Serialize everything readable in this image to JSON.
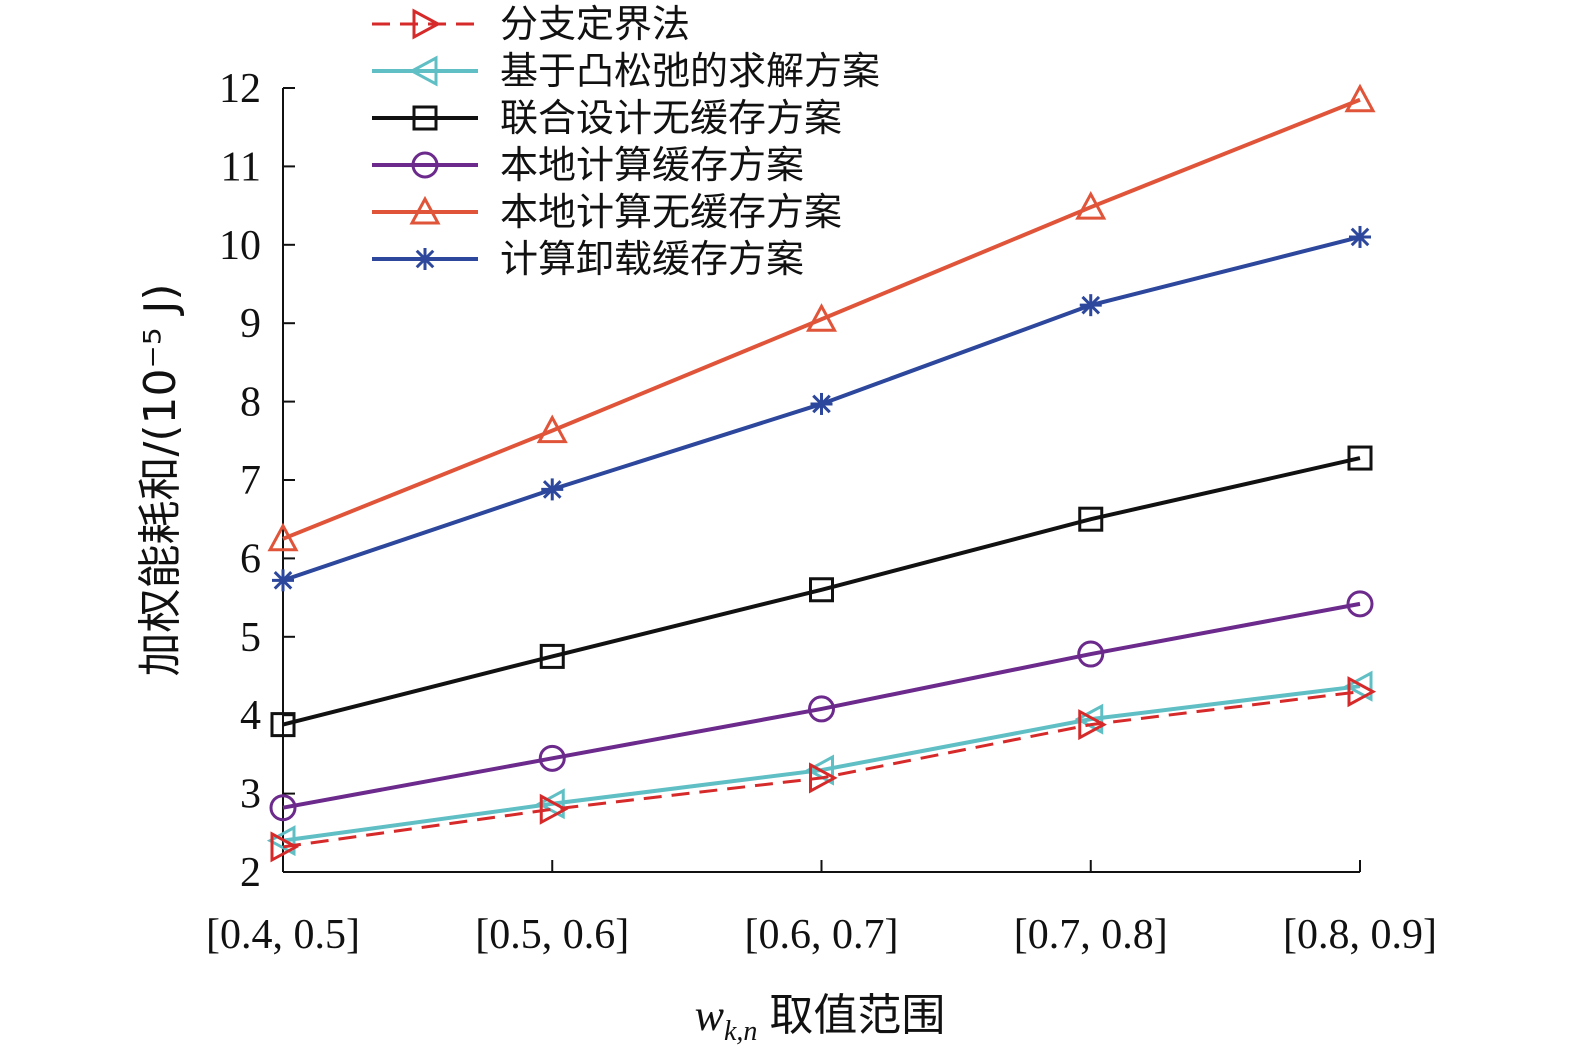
{
  "chart_data": {
    "type": "line",
    "title": "",
    "xlabel": {
      "var": "w",
      "sub": "k,n",
      "text": "取值范围"
    },
    "ylabel": "加权能耗和/(10⁻⁵ J)",
    "categories": [
      "[0.4, 0.5]",
      "[0.5, 0.6]",
      "[0.6, 0.7]",
      "[0.7, 0.8]",
      "[0.8, 0.9]"
    ],
    "ylim": [
      2,
      12
    ],
    "yticks": [
      2,
      3,
      4,
      5,
      6,
      7,
      8,
      9,
      10,
      11,
      12
    ],
    "legend_position": "top-left",
    "series": [
      {
        "name": "分支定界法",
        "color": "#d62a2a",
        "marker": "triangle-right",
        "dashed": true,
        "values": [
          2.32,
          2.8,
          3.2,
          3.88,
          4.3
        ]
      },
      {
        "name": "基于凸松弛的求解方案",
        "color": "#5fbfc4",
        "marker": "triangle-left",
        "dashed": false,
        "values": [
          2.4,
          2.87,
          3.3,
          3.95,
          4.37
        ]
      },
      {
        "name": "联合设计无缓存方案",
        "color": "#111111",
        "marker": "square",
        "dashed": false,
        "values": [
          3.88,
          4.75,
          5.6,
          6.5,
          7.28
        ]
      },
      {
        "name": "本地计算缓存方案",
        "color": "#6b2a8c",
        "marker": "circle",
        "dashed": false,
        "values": [
          2.82,
          3.45,
          4.08,
          4.78,
          5.42
        ]
      },
      {
        "name": "本地计算无缓存方案",
        "color": "#e0553a",
        "marker": "triangle-up",
        "dashed": false,
        "values": [
          6.25,
          7.63,
          9.05,
          10.48,
          11.85
        ]
      },
      {
        "name": "计算卸载缓存方案",
        "color": "#2c479c",
        "marker": "asterisk",
        "dashed": false,
        "values": [
          5.72,
          6.88,
          7.97,
          9.23,
          10.1
        ]
      }
    ]
  }
}
